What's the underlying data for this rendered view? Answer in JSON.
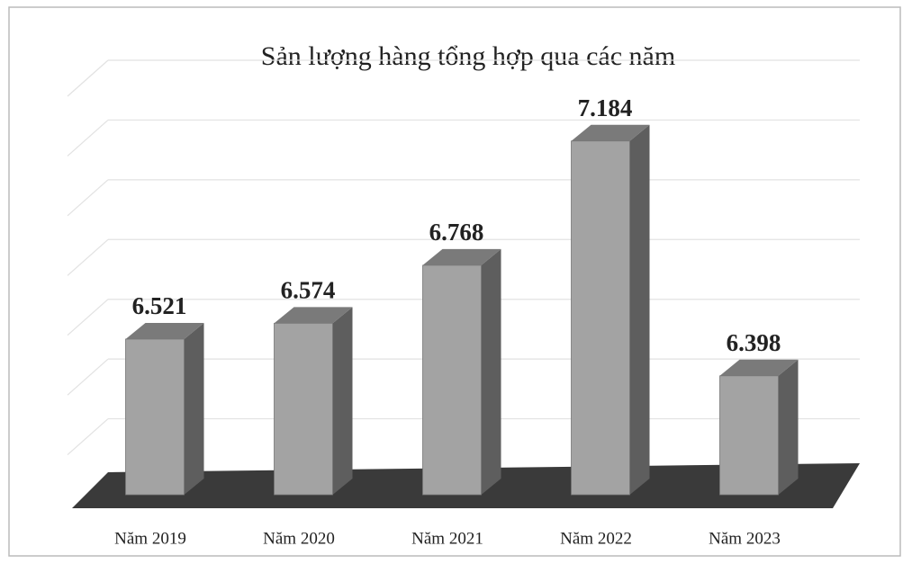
{
  "chart_data": {
    "type": "bar",
    "title": "Sản lượng hàng tổng hợp qua các năm",
    "categories": [
      "Năm 2019",
      "Năm 2020",
      "Năm 2021",
      "Năm 2022",
      "Năm 2023"
    ],
    "values": [
      6521,
      6574,
      6768,
      7184,
      6398
    ],
    "value_labels": [
      "6.521",
      "6.574",
      "6.768",
      "7.184",
      "6.398"
    ],
    "color": "#a3a3a3",
    "ylim": [
      6000,
      7400
    ],
    "yticks": [
      6000,
      6200,
      6400,
      6600,
      6800,
      7000,
      7200,
      7400
    ],
    "grid": true
  }
}
